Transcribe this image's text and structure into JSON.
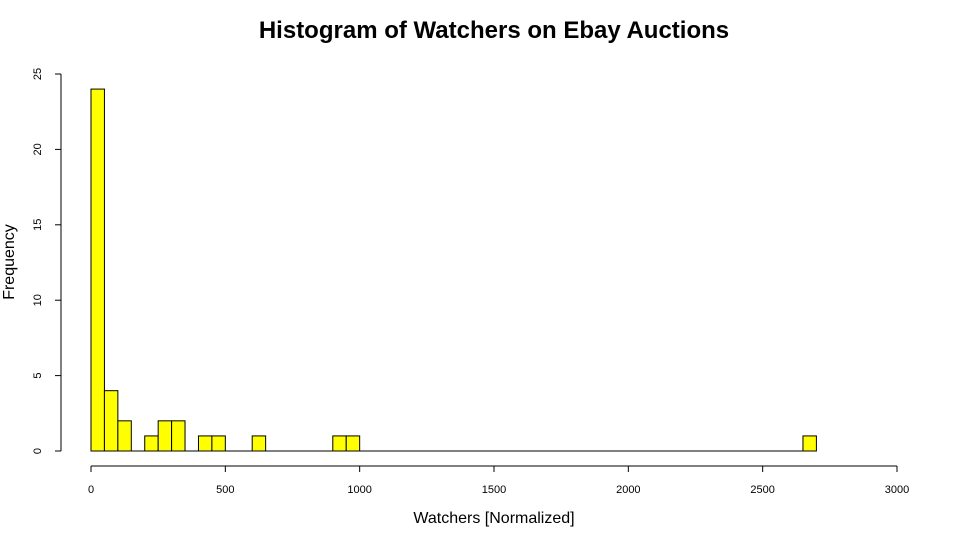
{
  "chart_data": {
    "type": "bar",
    "title": "Histogram of Watchers on Ebay Auctions",
    "xlabel": "Watchers [Normalized]",
    "ylabel": "Frequency",
    "bin_width": 50,
    "bins": [
      {
        "start": 0,
        "end": 50,
        "count": 24
      },
      {
        "start": 50,
        "end": 100,
        "count": 4
      },
      {
        "start": 100,
        "end": 150,
        "count": 2
      },
      {
        "start": 200,
        "end": 250,
        "count": 1
      },
      {
        "start": 250,
        "end": 300,
        "count": 2
      },
      {
        "start": 300,
        "end": 350,
        "count": 2
      },
      {
        "start": 400,
        "end": 450,
        "count": 1
      },
      {
        "start": 450,
        "end": 500,
        "count": 1
      },
      {
        "start": 600,
        "end": 650,
        "count": 1
      },
      {
        "start": 900,
        "end": 950,
        "count": 1
      },
      {
        "start": 950,
        "end": 1000,
        "count": 1
      },
      {
        "start": 2650,
        "end": 2700,
        "count": 1
      }
    ],
    "xlim": [
      0,
      3000
    ],
    "ylim": [
      0,
      25
    ],
    "x_ticks": [
      0,
      500,
      1000,
      1500,
      2000,
      2500,
      3000
    ],
    "y_ticks": [
      0,
      5,
      10,
      15,
      20,
      25
    ],
    "bar_color": "#ffff00",
    "grid": false,
    "legend": "none"
  }
}
